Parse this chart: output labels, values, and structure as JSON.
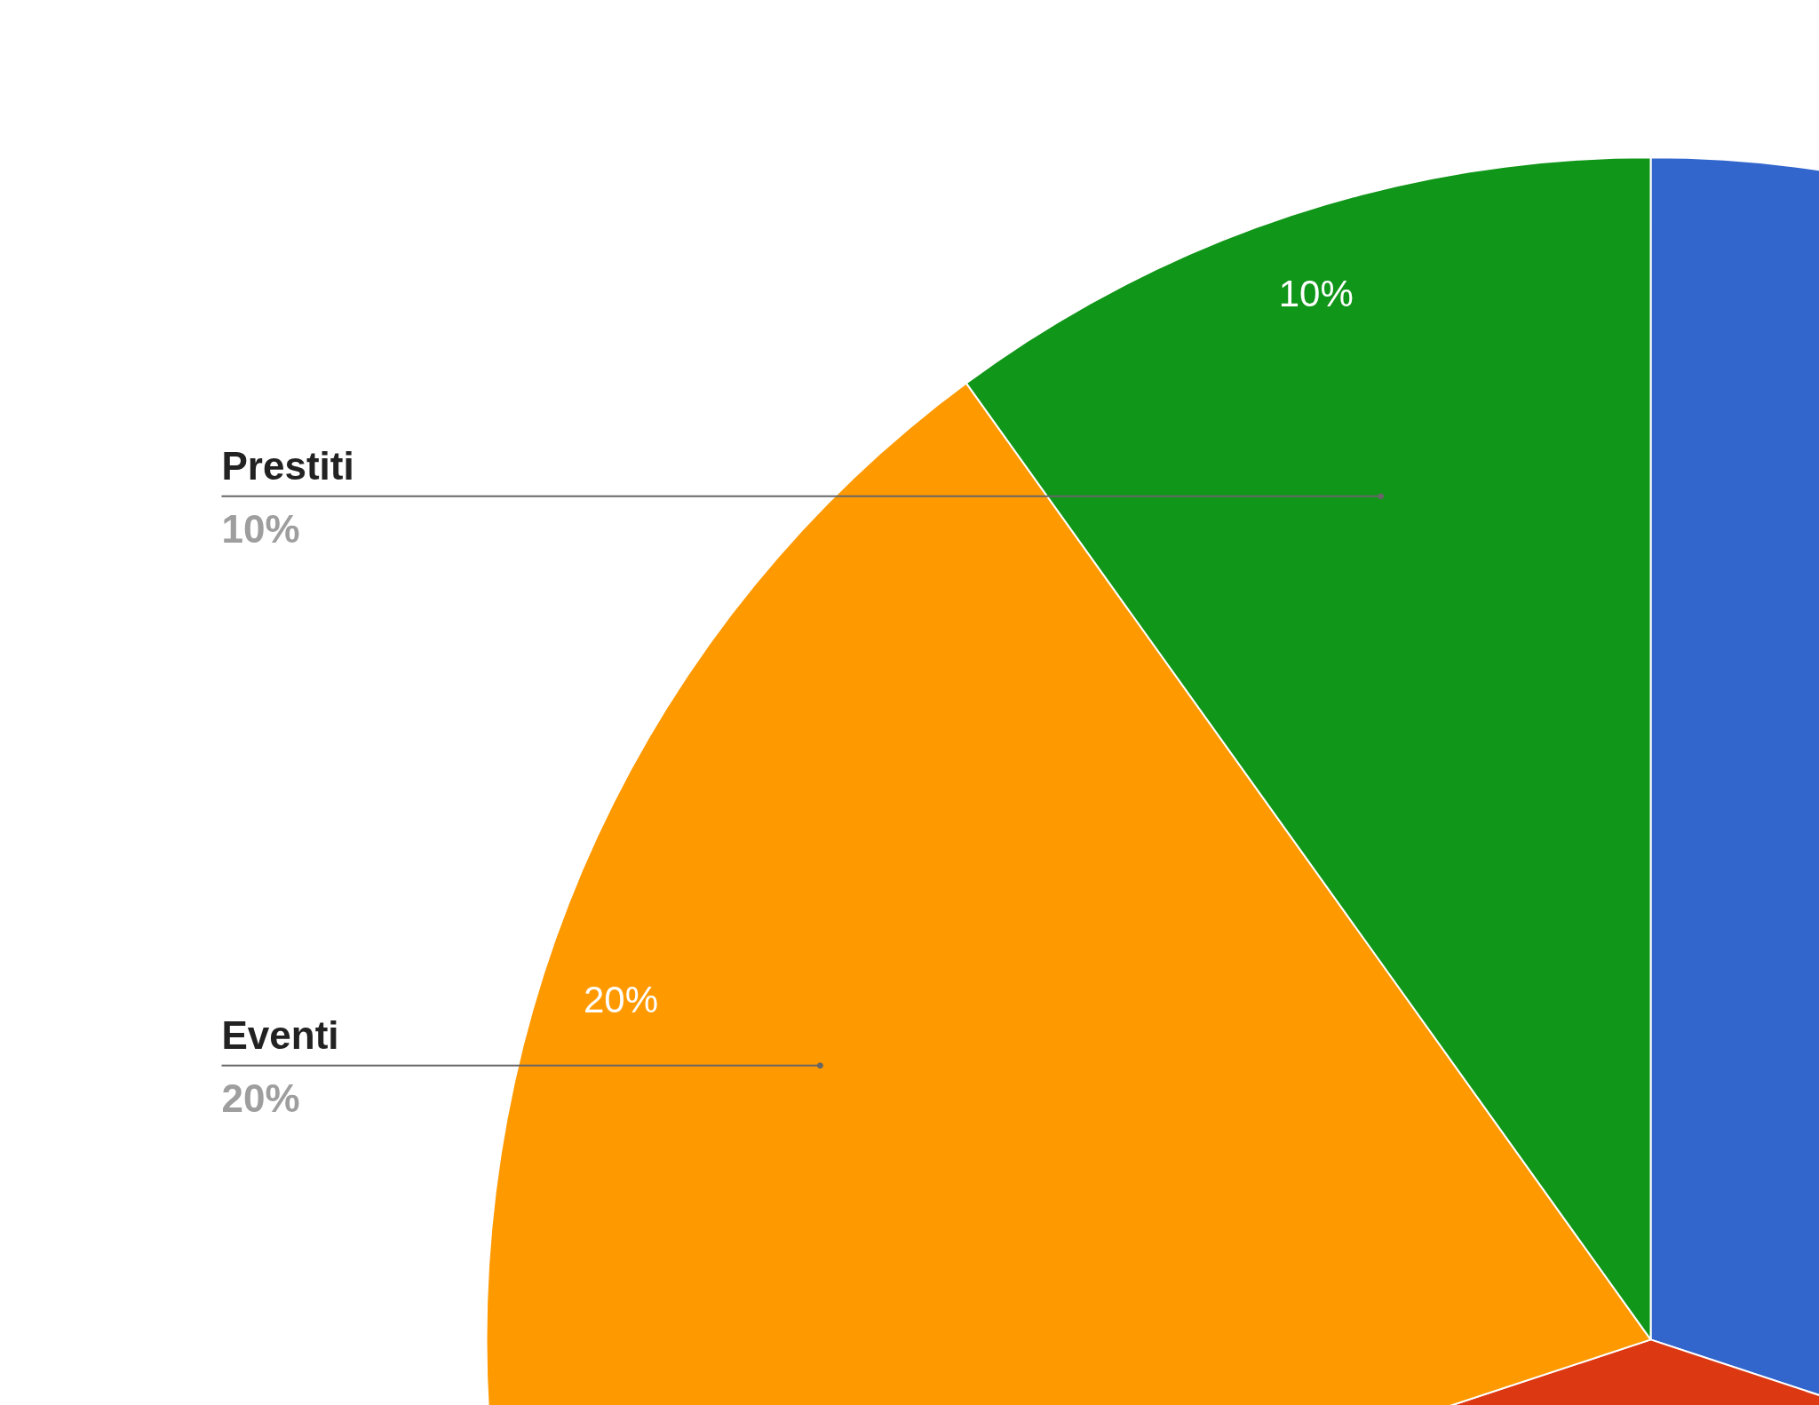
{
  "chart_data": {
    "type": "pie",
    "categories": [
      null,
      null,
      "Eventi",
      "Prestiti"
    ],
    "values": [
      30,
      40,
      20,
      10
    ],
    "colors": [
      "#3366cc",
      "#dc3912",
      "#ff9900",
      "#109618"
    ],
    "value_labels": [
      null,
      null,
      "20%",
      "10%"
    ],
    "annotations": [
      "20%",
      "10%"
    ]
  }
}
